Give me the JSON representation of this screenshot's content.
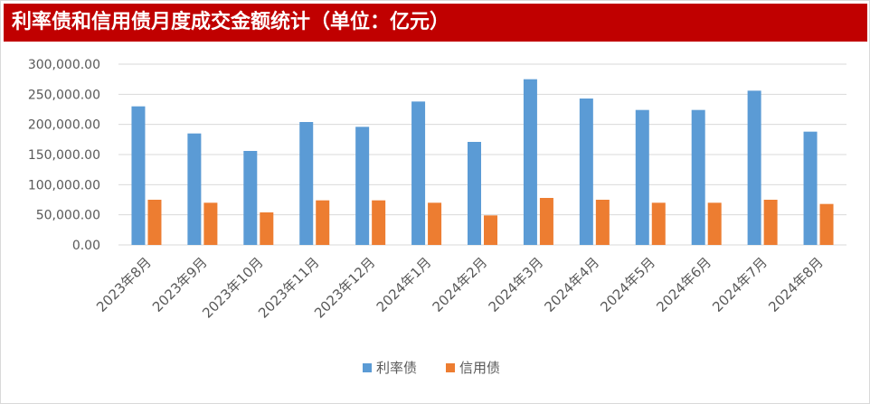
{
  "title": "利率债和信用债月度成交金额统计（单位：亿元）",
  "colors": {
    "title_bg": "#c00000",
    "series1": "#5b9bd5",
    "series2": "#ed7d31",
    "grid": "#d9d9d9",
    "text": "#595959"
  },
  "chart_data": {
    "type": "bar",
    "title": "利率债和信用债月度成交金额统计（单位：亿元）",
    "categories": [
      "2023年8月",
      "2023年9月",
      "2023年10月",
      "2023年11月",
      "2023年12月",
      "2024年1月",
      "2024年2月",
      "2024年3月",
      "2024年4月",
      "2024年5月",
      "2024年6月",
      "2024年7月",
      "2024年8月"
    ],
    "series": [
      {
        "name": "利率债",
        "color": "#5b9bd5",
        "values": [
          230000,
          185000,
          156000,
          204000,
          196000,
          238000,
          171000,
          275000,
          243000,
          224000,
          224000,
          256000,
          188000
        ]
      },
      {
        "name": "信用债",
        "color": "#ed7d31",
        "values": [
          75000,
          70000,
          54000,
          74000,
          74000,
          70000,
          49000,
          78000,
          75000,
          70000,
          70000,
          75000,
          68000
        ]
      }
    ],
    "ylim": [
      0,
      300000
    ],
    "yticks": [
      "0.00",
      "50,000.00",
      "100,000.00",
      "150,000.00",
      "200,000.00",
      "250,000.00",
      "300,000.00"
    ],
    "ytick_values": [
      0,
      50000,
      100000,
      150000,
      200000,
      250000,
      300000
    ],
    "grid": true,
    "legend_position": "bottom"
  }
}
